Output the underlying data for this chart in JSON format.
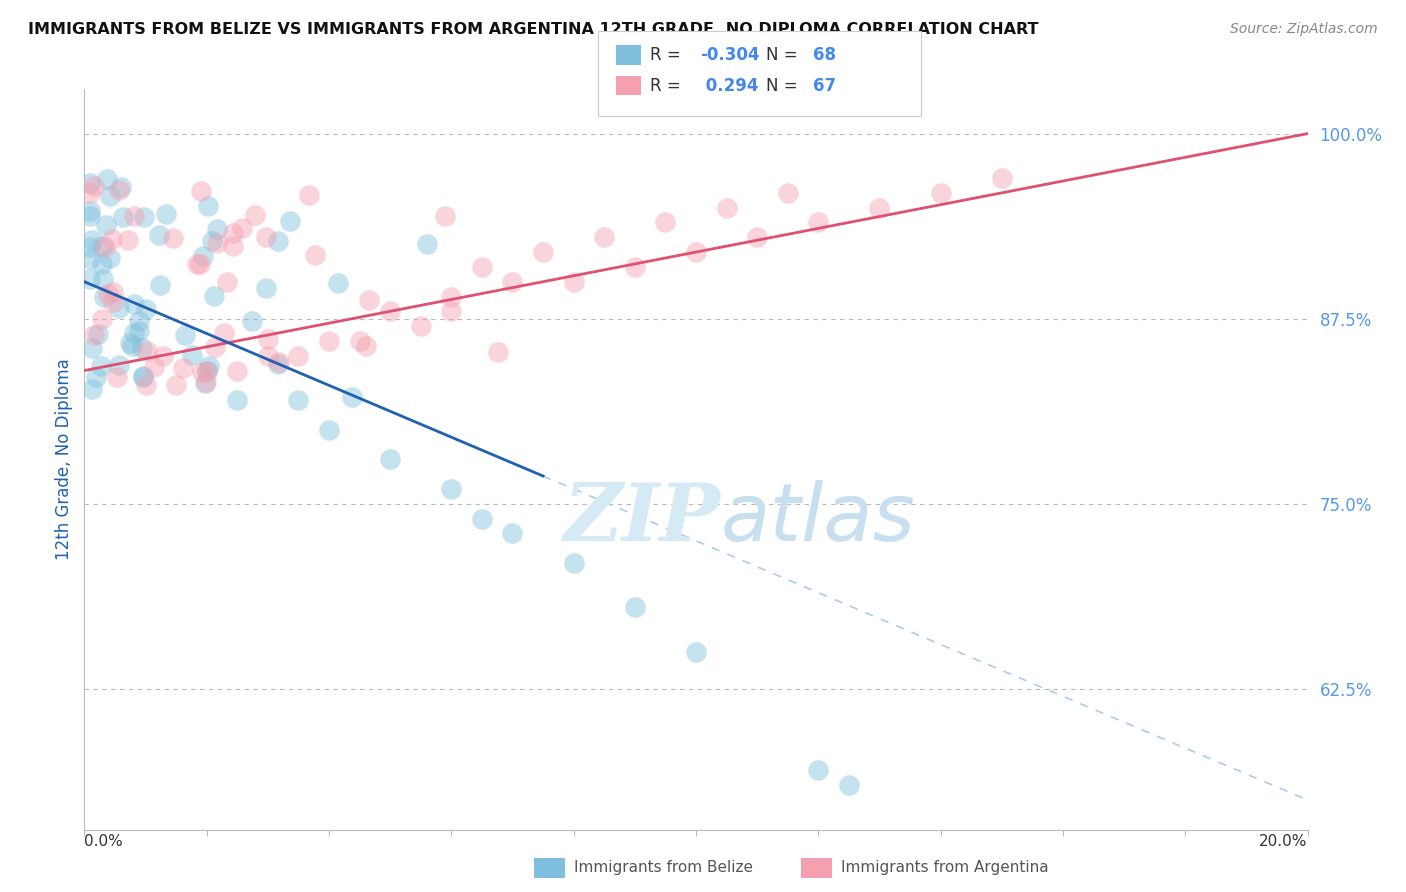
{
  "title": "IMMIGRANTS FROM BELIZE VS IMMIGRANTS FROM ARGENTINA 12TH GRADE, NO DIPLOMA CORRELATION CHART",
  "source": "Source: ZipAtlas.com",
  "ylabel": "12th Grade, No Diploma",
  "x_range": [
    0.0,
    0.2
  ],
  "y_range": [
    0.53,
    1.03
  ],
  "belize_R": -0.304,
  "belize_N": 68,
  "argentina_R": 0.294,
  "argentina_N": 67,
  "belize_color": "#7fbfdd",
  "argentina_color": "#f4a0b0",
  "belize_line_color": "#2060b0",
  "argentina_line_color": "#e05070",
  "background_color": "#ffffff",
  "grid_color": "#cccccc",
  "watermark_color": "#d5eaf5",
  "right_tick_color": "#5599ee",
  "y_ticks": [
    0.625,
    0.75,
    0.875,
    1.0
  ],
  "y_tick_labels": [
    "62.5%",
    "75.0%",
    "87.5%",
    "100.0%"
  ]
}
